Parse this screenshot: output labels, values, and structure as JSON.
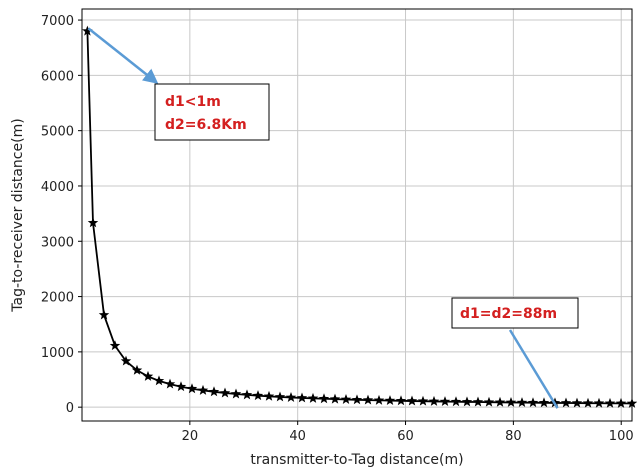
{
  "chart_data": {
    "type": "line",
    "xlabel": "transmitter-to-Tag distance(m)",
    "ylabel": "Tag-to-receiver distance(m)",
    "xlim": [
      0,
      102
    ],
    "ylim": [
      -250,
      7200
    ],
    "grid": true,
    "x_ticks": [
      20,
      40,
      60,
      80,
      100
    ],
    "y_ticks": [
      0,
      1000,
      2000,
      3000,
      4000,
      5000,
      6000,
      7000
    ],
    "series": [
      {
        "color": "#000000",
        "marker": "star",
        "x": [
          1,
          2.04,
          4.08,
          6.12,
          8.16,
          10.2,
          12.24,
          14.28,
          16.32,
          18.36,
          20.4,
          22.44,
          24.48,
          26.52,
          28.56,
          30.6,
          32.64,
          34.68,
          36.72,
          38.76,
          40.8,
          42.84,
          44.88,
          46.92,
          48.96,
          51,
          53.04,
          55.08,
          57.12,
          59.16,
          61.2,
          63.24,
          65.28,
          67.32,
          69.36,
          71.4,
          73.44,
          75.48,
          77.52,
          79.56,
          81.6,
          83.64,
          85.68,
          87.72,
          89.76,
          91.8,
          93.84,
          95.88,
          97.92,
          99.96,
          102
        ],
        "values": [
          6800,
          3333,
          1667,
          1111,
          833,
          667,
          556,
          476,
          417,
          370,
          333,
          303,
          278,
          256,
          238,
          222,
          208,
          196,
          185,
          175,
          167,
          159,
          152,
          145,
          139,
          133,
          128,
          123,
          119,
          115,
          111,
          108,
          104,
          101,
          98,
          95,
          93,
          90,
          88,
          85,
          83,
          81,
          79,
          77,
          76,
          74,
          72,
          71,
          69,
          68,
          67
        ]
      }
    ],
    "annotations": [
      {
        "lines": [
          "d1<1m",
          "d2=6.8Km"
        ],
        "arrow_target": [
          1,
          6850
        ],
        "arrow_color": "#5b9bd5",
        "text_color": "#d42020"
      },
      {
        "lines": [
          "d1=d2=88m"
        ],
        "arrow_target": [
          88,
          0
        ],
        "arrow_color": "#5b9bd5",
        "text_color": "#d42020"
      }
    ]
  }
}
